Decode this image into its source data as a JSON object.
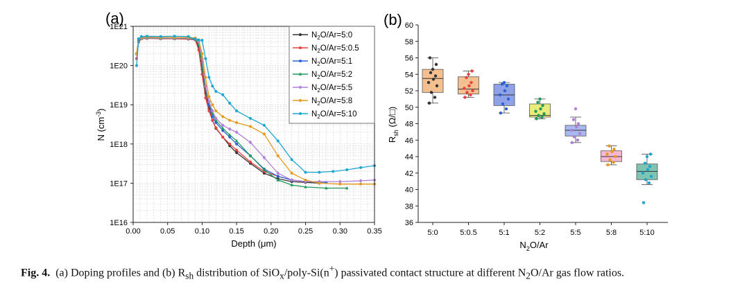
{
  "caption": {
    "label": "Fig. 4.",
    "part1": "(a) Doping profiles and (b) R",
    "part1_sub": "sh",
    "part2": " distribution of SiO",
    "part2_sub": "x",
    "part3": "/poly-Si(n",
    "part3_sup": "+",
    "part4": ") passivated contact structure at different N",
    "part4_sub": "2",
    "part5": "O/Ar gas flow ratios."
  },
  "chart_data": [
    {
      "panel": "(a)",
      "type": "line",
      "xlabel": "Depth (μm)",
      "ylabel_main": "N (cm",
      "ylabel_sup": "-3",
      "ylabel_end": ")",
      "xlim": [
        0,
        0.35
      ],
      "ylim": [
        1e+16,
        1e+21
      ],
      "yscale": "log",
      "grid": true,
      "legend_position": "top-right",
      "xticks": [
        0.0,
        0.05,
        0.1,
        0.15,
        0.2,
        0.25,
        0.3,
        0.35
      ],
      "xtick_labels": [
        "0.00",
        "0.05",
        "0.10",
        "0.15",
        "0.20",
        "0.25",
        "0.30",
        "0.35"
      ],
      "yticks": [
        1e+16,
        1e+17,
        1e+18,
        1e+19,
        1e+20,
        1e+21
      ],
      "ytick_labels": [
        "1E16",
        "1E17",
        "1E18",
        "1E19",
        "1E20",
        "1E21"
      ],
      "series": [
        {
          "name": "N2O/Ar=5:0",
          "legend_main": "N",
          "legend_sub": "2",
          "legend_rest": "O/Ar=5:0",
          "color": "#333333",
          "marker": "circle",
          "x": [
            0.005,
            0.008,
            0.012,
            0.02,
            0.04,
            0.06,
            0.08,
            0.09,
            0.095,
            0.1,
            0.105,
            0.11,
            0.115,
            0.12,
            0.13,
            0.14,
            0.15,
            0.17,
            0.19,
            0.21,
            0.23,
            0.25,
            0.27
          ],
          "y": [
            2e+20,
            4.5e+20,
            5e+20,
            5.2e+20,
            5e+20,
            5.1e+20,
            5e+20,
            4.8e+20,
            3e+20,
            8e+19,
            2e+19,
            8e+18,
            4e+18,
            2.5e+18,
            1.5e+18,
            9e+17,
            6e+17,
            3.2e+17,
            1.8e+17,
            1.3e+17,
            1.1e+17,
            1.05e+17,
            1e+17
          ]
        },
        {
          "name": "N2O/Ar=5:0.5",
          "legend_main": "N",
          "legend_sub": "2",
          "legend_rest": "O/Ar=5:0.5",
          "color": "#e8413f",
          "marker": "circle",
          "x": [
            0.005,
            0.008,
            0.012,
            0.02,
            0.04,
            0.06,
            0.08,
            0.09,
            0.095,
            0.1,
            0.105,
            0.11,
            0.115,
            0.12,
            0.13,
            0.14,
            0.15,
            0.17,
            0.19,
            0.21,
            0.23,
            0.25
          ],
          "y": [
            1.5e+20,
            4e+20,
            4.8e+20,
            4.9e+20,
            4.8e+20,
            4.8e+20,
            4.7e+20,
            4.5e+20,
            2.5e+20,
            6e+19,
            1.5e+19,
            7e+18,
            4e+18,
            2.6e+18,
            1.5e+18,
            1e+18,
            7e+17,
            3.5e+17,
            2e+17,
            1.5e+17,
            1.2e+17,
            1.1e+17
          ]
        },
        {
          "name": "N2O/Ar=5:1",
          "legend_main": "N",
          "legend_sub": "2",
          "legend_rest": "O/Ar=5:1",
          "color": "#2d62d6",
          "marker": "circle",
          "x": [
            0.005,
            0.008,
            0.012,
            0.02,
            0.04,
            0.06,
            0.08,
            0.09,
            0.095,
            0.1,
            0.105,
            0.11,
            0.115,
            0.12,
            0.13,
            0.14,
            0.15,
            0.17,
            0.19,
            0.21,
            0.23,
            0.25,
            0.28
          ],
          "y": [
            2e+20,
            4.8e+20,
            5.2e+20,
            5.3e+20,
            5.2e+20,
            5.2e+20,
            5.1e+20,
            5e+20,
            4e+20,
            1.2e+20,
            3e+19,
            1e+19,
            5e+18,
            3.5e+18,
            2.2e+18,
            1.5e+18,
            1e+18,
            5e+17,
            2.3e+17,
            1.5e+17,
            1.2e+17,
            1.1e+17,
            1.05e+17
          ]
        },
        {
          "name": "N2O/Ar=5:2",
          "legend_main": "N",
          "legend_sub": "2",
          "legend_rest": "O/Ar=5:2",
          "color": "#1f9a5c",
          "marker": "triangle",
          "x": [
            0.005,
            0.008,
            0.012,
            0.02,
            0.04,
            0.06,
            0.08,
            0.09,
            0.095,
            0.1,
            0.105,
            0.11,
            0.115,
            0.12,
            0.13,
            0.14,
            0.15,
            0.17,
            0.19,
            0.21,
            0.23,
            0.25,
            0.28,
            0.31
          ],
          "y": [
            2e+20,
            4.5e+20,
            4.9e+20,
            5e+20,
            4.9e+20,
            4.9e+20,
            4.9e+20,
            4.7e+20,
            3.5e+20,
            1e+20,
            2.5e+19,
            1.2e+19,
            6e+18,
            4e+18,
            2.5e+18,
            1.7e+18,
            1.2e+18,
            5e+17,
            2.2e+17,
            1.2e+17,
            9e+16,
            8e+16,
            7.5e+16,
            7.5e+16
          ]
        },
        {
          "name": "N2O/Ar=5:5",
          "legend_main": "N",
          "legend_sub": "2",
          "legend_rest": "O/Ar=5:5",
          "color": "#b07fd8",
          "marker": "diamond",
          "x": [
            0.005,
            0.008,
            0.012,
            0.02,
            0.04,
            0.06,
            0.08,
            0.09,
            0.095,
            0.1,
            0.105,
            0.11,
            0.115,
            0.12,
            0.13,
            0.14,
            0.15,
            0.17,
            0.19,
            0.21,
            0.23,
            0.25,
            0.27,
            0.3,
            0.33,
            0.35
          ],
          "y": [
            2e+20,
            4.7e+20,
            5e+20,
            5.1e+20,
            5e+20,
            5e+20,
            5e+20,
            4.9e+20,
            4e+20,
            1.5e+20,
            3e+19,
            1.2e+19,
            7e+18,
            4.5e+18,
            3e+18,
            2.4e+18,
            2e+18,
            1.1e+18,
            4.5e+17,
            1.8e+17,
            1.2e+17,
            1.1e+17,
            1.1e+17,
            1.1e+17,
            1.15e+17,
            1.2e+17
          ]
        },
        {
          "name": "N2O/Ar=5:8",
          "legend_main": "N",
          "legend_sub": "2",
          "legend_rest": "O/Ar=5:8",
          "color": "#e49a1e",
          "marker": "circle",
          "x": [
            0.005,
            0.008,
            0.012,
            0.02,
            0.04,
            0.06,
            0.08,
            0.09,
            0.095,
            0.1,
            0.105,
            0.11,
            0.115,
            0.12,
            0.13,
            0.14,
            0.15,
            0.17,
            0.19,
            0.21,
            0.23,
            0.25,
            0.27,
            0.3,
            0.33,
            0.35
          ],
          "y": [
            2e+20,
            4.8e+20,
            5.2e+20,
            5.3e+20,
            5.2e+20,
            5.2e+20,
            5.2e+20,
            5e+20,
            4.5e+20,
            2e+20,
            5e+19,
            1.6e+19,
            1e+19,
            7e+18,
            5e+18,
            4e+18,
            3.5e+18,
            2.8e+18,
            1.8e+18,
            5e+17,
            1.8e+17,
            1.2e+17,
            1e+17,
            9.5e+16,
            9.5e+16,
            9.5e+16
          ]
        },
        {
          "name": "N2O/Ar=5:10",
          "legend_main": "N",
          "legend_sub": "2",
          "legend_rest": "O/Ar=5:10",
          "color": "#1aa6d0",
          "marker": "circle",
          "x": [
            0.005,
            0.008,
            0.012,
            0.02,
            0.04,
            0.06,
            0.08,
            0.09,
            0.095,
            0.1,
            0.105,
            0.11,
            0.115,
            0.12,
            0.13,
            0.14,
            0.15,
            0.17,
            0.19,
            0.21,
            0.23,
            0.25,
            0.27,
            0.29,
            0.31,
            0.33,
            0.35
          ],
          "y": [
            1e+20,
            4.8e+20,
            5.5e+20,
            5.6e+20,
            5.5e+20,
            5.6e+20,
            5.5e+20,
            4.7e+20,
            4.5e+20,
            4.4e+20,
            1.5e+20,
            5e+19,
            3e+19,
            2.2e+19,
            1.8e+19,
            1.1e+19,
            7e+18,
            4.5e+18,
            3e+18,
            1.2e+18,
            4e+17,
            1.9e+17,
            1.9e+17,
            2e+17,
            2.2e+17,
            2.5e+17,
            2.8e+17
          ]
        }
      ]
    },
    {
      "panel": "(b)",
      "type": "box",
      "xlabel_main": "N",
      "xlabel_sub": "2",
      "xlabel_rest": "O/Ar",
      "ylabel_main": "R",
      "ylabel_sub": "sh",
      "ylabel_rest": " (Ω/□)",
      "ylim": [
        36,
        60
      ],
      "yticks": [
        36,
        38,
        40,
        42,
        44,
        46,
        48,
        50,
        52,
        54,
        56,
        58,
        60
      ],
      "categories": [
        "5:0",
        "5:0.5",
        "5:1",
        "5:2",
        "5:5",
        "5:8",
        "5:10"
      ],
      "boxes": [
        {
          "category": "5:0",
          "q1": 51.8,
          "median": 53.5,
          "q3": 54.6,
          "whisker_low": 50.5,
          "whisker_high": 56.0,
          "box_color": "#f4c08f",
          "point_color": "#333333",
          "points": [
            50.5,
            51.2,
            51.8,
            52.6,
            53.0,
            53.4,
            53.8,
            54.2,
            54.6,
            55.2,
            56.0
          ]
        },
        {
          "category": "5:0.5",
          "q1": 51.6,
          "median": 52.2,
          "q3": 53.7,
          "whisker_low": 51.2,
          "whisker_high": 54.4,
          "box_color": "#f4c08f",
          "point_color": "#e8413f",
          "points": [
            51.2,
            51.5,
            51.8,
            52.0,
            52.3,
            52.6,
            53.0,
            53.6,
            54.0,
            54.4
          ]
        },
        {
          "category": "5:1",
          "q1": 50.2,
          "median": 51.5,
          "q3": 52.8,
          "whisker_low": 49.3,
          "whisker_high": 53.0,
          "box_color": "#8fa2e8",
          "point_color": "#2d62d6",
          "points": [
            49.3,
            49.8,
            50.4,
            51.0,
            51.5,
            52.0,
            52.6,
            52.8,
            53.0
          ]
        },
        {
          "category": "5:2",
          "q1": 48.8,
          "median": 49.0,
          "q3": 50.4,
          "whisker_low": 48.6,
          "whisker_high": 51.0,
          "box_color": "#e9ec7a",
          "point_color": "#1f9a5c",
          "points": [
            48.6,
            48.8,
            49.0,
            49.2,
            49.5,
            49.8,
            50.2,
            50.6,
            51.0
          ]
        },
        {
          "category": "5:5",
          "q1": 46.5,
          "median": 47.2,
          "q3": 47.8,
          "whisker_low": 45.7,
          "whisker_high": 48.8,
          "box_color": "#a9b8ee",
          "point_color": "#b07fd8",
          "points": [
            45.7,
            46.0,
            46.4,
            46.8,
            47.2,
            47.6,
            48.0,
            48.5,
            49.8
          ]
        },
        {
          "category": "5:8",
          "q1": 43.4,
          "median": 44.0,
          "q3": 44.7,
          "whisker_low": 43.0,
          "whisker_high": 45.3,
          "box_color": "#f6b7d2",
          "point_color": "#e49a1e",
          "points": [
            43.0,
            43.3,
            43.6,
            44.0,
            44.3,
            44.6,
            44.9,
            45.3
          ]
        },
        {
          "category": "5:10",
          "q1": 41.2,
          "median": 42.2,
          "q3": 43.1,
          "whisker_low": 40.6,
          "whisker_high": 44.3,
          "box_color": "#7fc3b2",
          "point_color": "#1aa6d0",
          "points": [
            38.4,
            40.8,
            41.2,
            41.6,
            42.0,
            42.4,
            42.8,
            43.2,
            44.0,
            44.3
          ]
        }
      ]
    }
  ]
}
